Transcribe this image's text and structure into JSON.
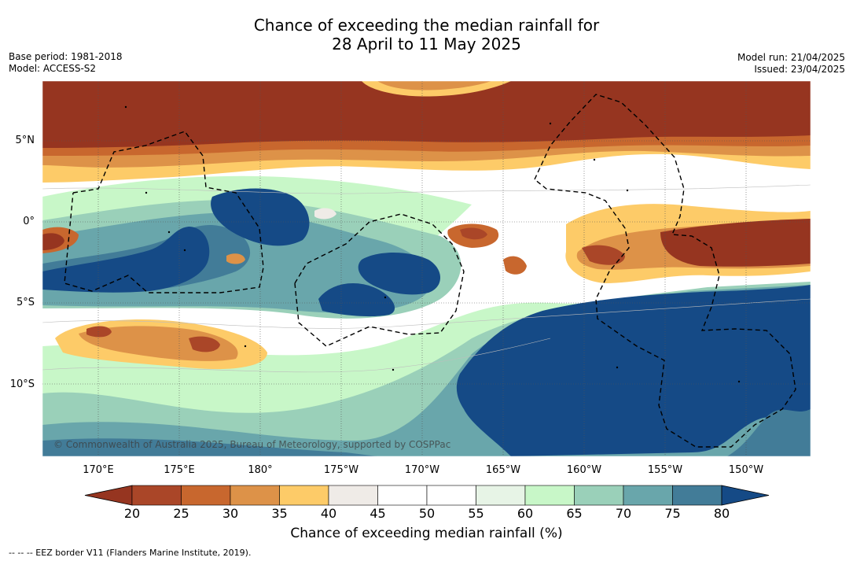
{
  "title": {
    "line1": "Chance of exceeding the median rainfall for",
    "line2": "28 April to 11 May 2025"
  },
  "meta_left": {
    "base_period": "Base period: 1981-2018",
    "model": "Model: ACCESS-S2"
  },
  "meta_right": {
    "model_run": "Model run: 21/04/2025",
    "issued": "Issued: 23/04/2025"
  },
  "map": {
    "copyright": "© Commonwealth of Australia 2025, Bureau of Meteorology, supported by COSPPac",
    "lon_labels": [
      "170°E",
      "175°E",
      "180°",
      "175°W",
      "170°W",
      "165°W",
      "160°W",
      "155°W",
      "150°W"
    ],
    "lat_labels": [
      "5°N",
      "0°",
      "5°S",
      "10°S"
    ],
    "lon_range": [
      167,
      214.5
    ],
    "lat_range": [
      -14.5,
      8.5
    ],
    "grid": "dotted"
  },
  "colorbar": {
    "ticks": [
      "20",
      "25",
      "30",
      "35",
      "40",
      "45",
      "50",
      "55",
      "60",
      "65",
      "70",
      "75",
      "80"
    ],
    "title": "Chance of exceeding median rainfall (%)",
    "under_color": "#963520",
    "over_color": "#154a86",
    "colors": [
      "#aa4628",
      "#c8672e",
      "#dd9248",
      "#fdcb68",
      "#efebe7",
      "#ffffff",
      "#ffffff",
      "#e7f4e6",
      "#c8f7c8",
      "#9ad0b9",
      "#69a6ab",
      "#427c98"
    ]
  },
  "footnote": "-- -- -- EEZ border V11 (Flanders Marine Institute, 2019)."
}
